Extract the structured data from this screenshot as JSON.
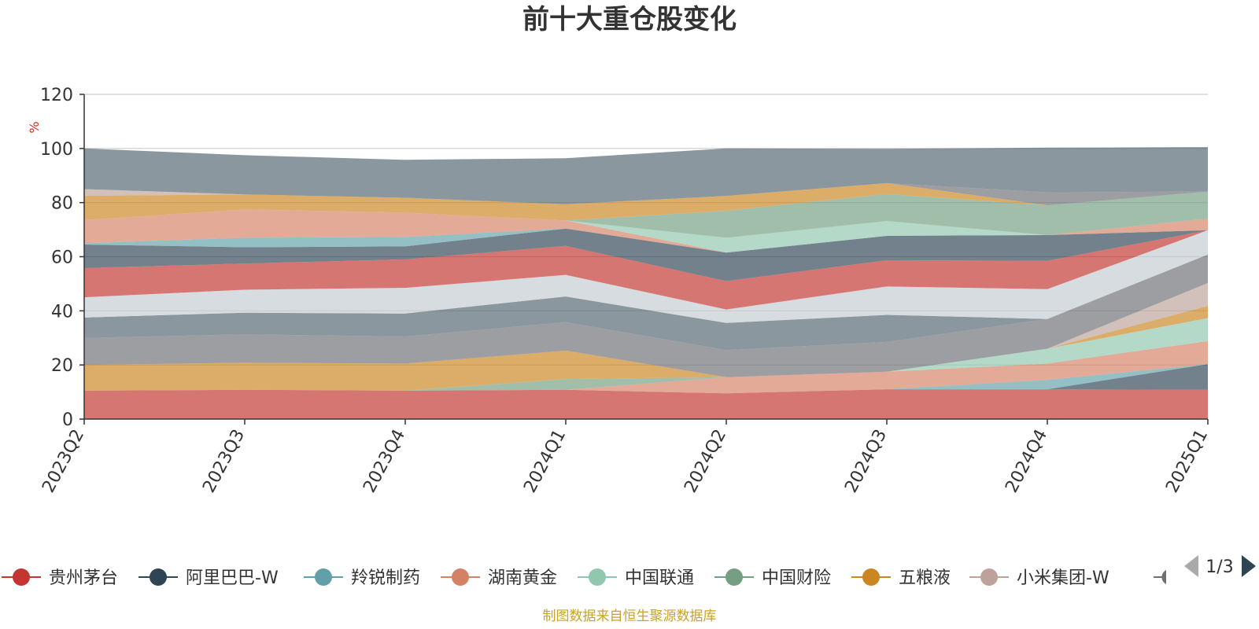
{
  "chart_data": {
    "type": "area",
    "title": "前十大重仓股变化",
    "unit_label": "%",
    "categories": [
      "2023Q2",
      "2023Q3",
      "2023Q4",
      "2024Q1",
      "2024Q2",
      "2024Q3",
      "2024Q4",
      "2025Q1"
    ],
    "ylim": [
      0,
      120
    ],
    "yticks": [
      0,
      20,
      40,
      60,
      80,
      100,
      120
    ],
    "grid": true,
    "legend_position": "bottom",
    "series": [
      {
        "name": "贵州茅台",
        "color": "#c23531",
        "values": [
          10.5,
          10.8,
          10.5,
          10.8,
          9.5,
          11,
          11,
          10.8
        ]
      },
      {
        "name": "阿里巴巴-W",
        "color": "#2f4554",
        "values": [
          0,
          0,
          0,
          0,
          0,
          0,
          0,
          9.5
        ]
      },
      {
        "name": "羚锐制药",
        "color": "#61a0a8",
        "values": [
          0,
          0,
          0,
          0,
          0,
          0,
          3.5,
          0
        ]
      },
      {
        "name": "湖南黄金",
        "color": "#d48265",
        "values": [
          0,
          0,
          0,
          0,
          6,
          6.5,
          6,
          8.5
        ]
      },
      {
        "name": "中国联通",
        "color": "#91c7ae",
        "values": [
          0,
          0,
          0,
          0,
          0,
          0,
          5.5,
          8.5
        ]
      },
      {
        "name": "中国财险",
        "color": "#749f83",
        "values": [
          0,
          0,
          0,
          4,
          0,
          0,
          0,
          0
        ]
      },
      {
        "name": "五粮液",
        "color": "#ca8622",
        "values": [
          9.5,
          10,
          10,
          10.5,
          0,
          0,
          0,
          4.5
        ]
      },
      {
        "name": "小米集团-W",
        "color": "#bda29a",
        "values": [
          0,
          0,
          0,
          0,
          0,
          0,
          0,
          8.5
        ]
      },
      {
        "name": "",
        "color": "#6e7074",
        "values": [
          10,
          10.5,
          10,
          10.5,
          10,
          11,
          11,
          10.5
        ]
      },
      {
        "name": "",
        "color": "#546570",
        "values": [
          7.5,
          8,
          8.5,
          9.5,
          10,
          10,
          0,
          0
        ]
      },
      {
        "name": "",
        "color": "#c4ccd3",
        "values": [
          7.5,
          8.5,
          9.5,
          8,
          5,
          10.5,
          11,
          9
        ]
      },
      {
        "name": "",
        "color": "#c23531",
        "values": [
          10.8,
          9.7,
          10.5,
          10.7,
          10.5,
          9.7,
          10.5,
          0
        ]
      },
      {
        "name": "",
        "color": "#2f4554",
        "values": [
          8.7,
          6,
          4.8,
          6.4,
          10.5,
          9,
          9.5,
          0
        ]
      },
      {
        "name": "",
        "color": "#61a0a8",
        "values": [
          0.5,
          3.5,
          3.5,
          0,
          0,
          0,
          0,
          0
        ]
      },
      {
        "name": "",
        "color": "#d48265",
        "values": [
          8.5,
          10.5,
          9,
          3,
          0,
          0,
          0,
          4.3
        ]
      },
      {
        "name": "",
        "color": "#91c7ae",
        "values": [
          0,
          0,
          0,
          0,
          5.5,
          5.5,
          0,
          0
        ]
      },
      {
        "name": "",
        "color": "#749f83",
        "values": [
          0,
          0,
          0,
          0,
          10,
          10,
          11,
          10
        ]
      },
      {
        "name": "",
        "color": "#ca8622",
        "values": [
          9,
          5.5,
          5.5,
          6,
          5.5,
          4,
          0,
          0
        ]
      },
      {
        "name": "",
        "color": "#bda29a",
        "values": [
          2.5,
          0,
          0,
          0,
          0,
          0,
          0,
          0
        ]
      },
      {
        "name": "",
        "color": "#6e7074",
        "values": [
          0,
          0,
          0,
          0,
          0,
          0,
          4.8,
          0
        ]
      },
      {
        "name": "",
        "color": "#546570",
        "values": [
          15,
          14.5,
          14,
          17,
          17.5,
          12.7,
          16.5,
          16.4
        ]
      }
    ]
  },
  "legend_page": "1/3",
  "footer": "制图数据来自恒生聚源数据库"
}
